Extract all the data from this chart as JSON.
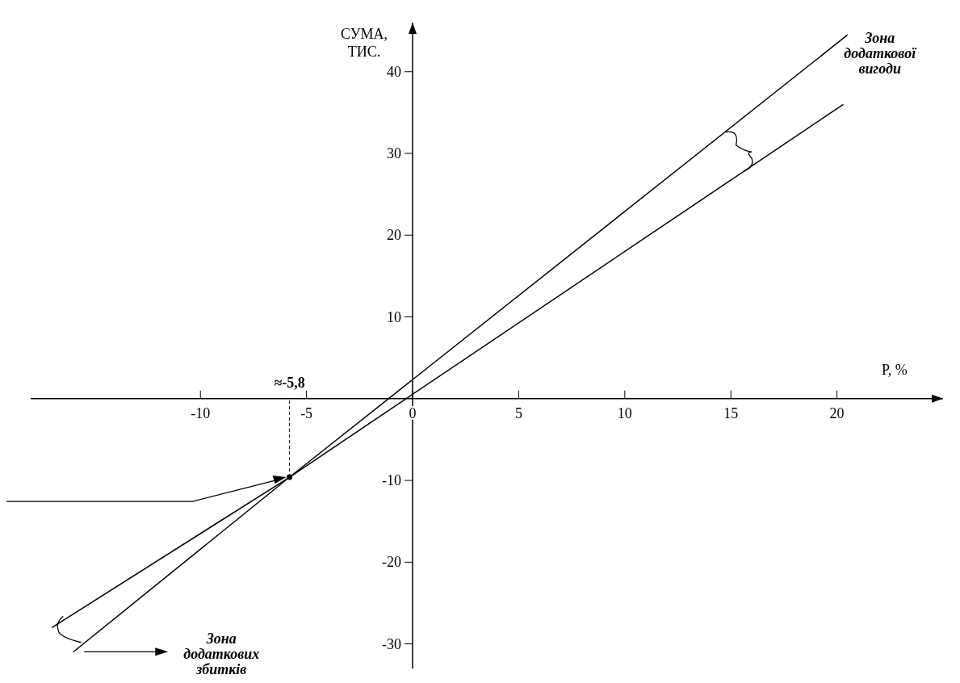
{
  "chart_data": {
    "type": "line",
    "xlabel": "Р, %",
    "ylabel": "СУМА, ТИС.",
    "xlim": [
      -18,
      25
    ],
    "ylim": [
      -33,
      46
    ],
    "xticks": [
      -10,
      -5,
      0,
      5,
      10,
      15,
      20
    ],
    "yticks": [
      -30,
      -20,
      -10,
      10,
      20,
      30,
      40
    ],
    "grid": false,
    "line_style": "solid",
    "series": [
      {
        "color": "#000000",
        "x": [
          -16,
          -5.8,
          20.5
        ],
        "values": [
          -31,
          -9.6,
          44.5
        ]
      },
      {
        "color": "#000000",
        "x": [
          -17,
          -5.8,
          20.3
        ],
        "values": [
          -28,
          -9.6,
          36
        ]
      },
      {
        "type": "scatter",
        "marker": "circle",
        "color": "#000000",
        "x": [
          -5.8
        ],
        "values": [
          -9.6
        ]
      }
    ],
    "annotations": [
      {
        "text": "≈-5,8",
        "x": -5.8,
        "y": -9.6
      },
      "Зона додаткової вигоди",
      "Зона додаткових збитків"
    ]
  }
}
